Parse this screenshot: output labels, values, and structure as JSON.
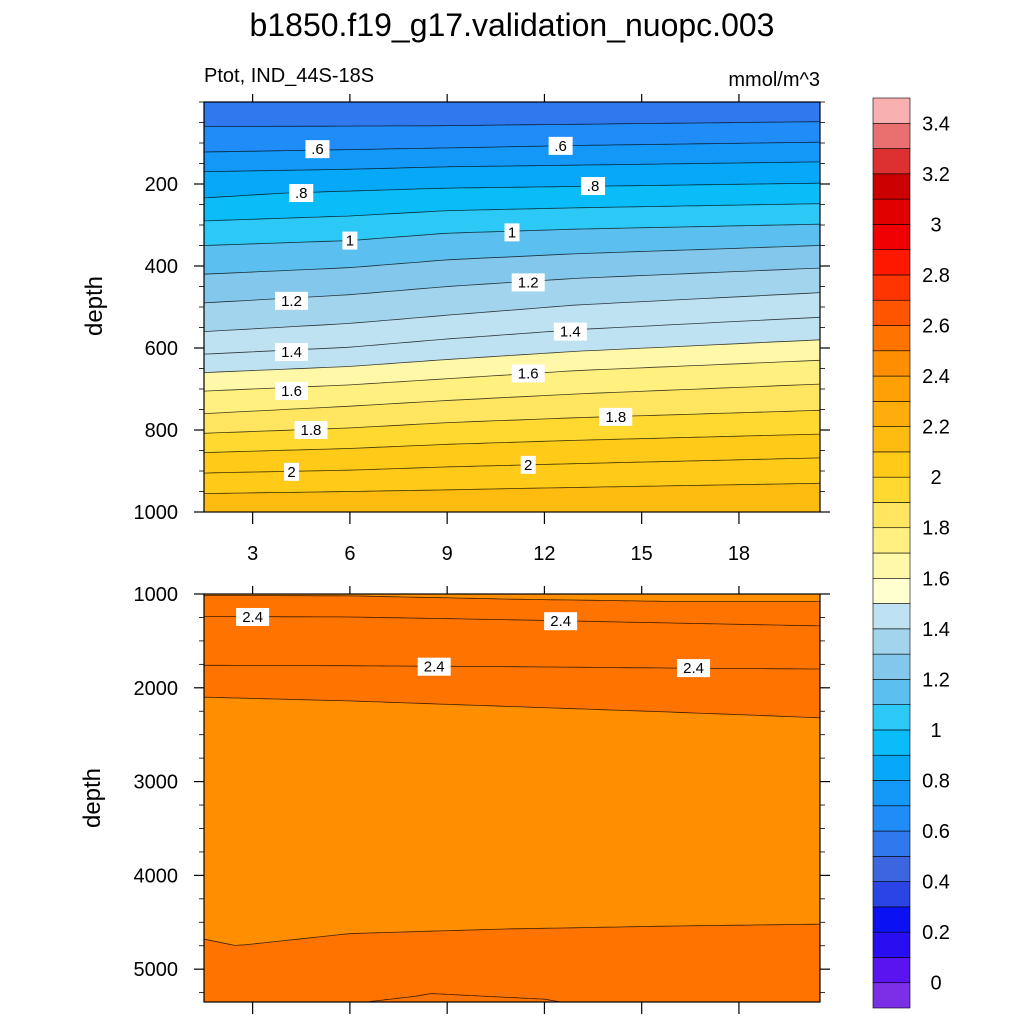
{
  "title": "b1850.f19_g17.validation_nuopc.003",
  "chart_data": [
    {
      "type": "contour",
      "panel": "upper",
      "left_label": "Ptot, IND_44S-18S",
      "right_label": "mmol/m^3",
      "ylabel": "depth",
      "xlabel": "",
      "xlim": [
        1.5,
        20.5
      ],
      "ylim": [
        1000,
        0
      ],
      "x_ticks": [
        3,
        6,
        9,
        12,
        15,
        18
      ],
      "x_tick_labels": [
        "3",
        "6",
        "9",
        "12",
        "15",
        "18"
      ],
      "y_ticks": [
        200,
        400,
        600,
        800,
        1000
      ],
      "y_tick_labels": [
        "200",
        "400",
        "600",
        "800",
        "1000"
      ],
      "contour_levels": [
        0.35,
        0.4,
        0.5,
        0.6,
        0.7,
        0.8,
        0.9,
        1.0,
        1.1,
        1.2,
        1.3,
        1.4,
        1.5,
        1.6,
        1.7,
        1.8,
        1.9,
        2.0,
        2.1,
        2.2
      ],
      "contour_lines": [
        {
          "level": 0.5,
          "x": [
            1.5,
            8.5,
            20.5
          ],
          "depth": [
            60,
            58,
            48
          ]
        },
        {
          "level": 0.6,
          "x": [
            1.5,
            6,
            9,
            13,
            20.5
          ],
          "depth": [
            122,
            116,
            112,
            106,
            98
          ]
        },
        {
          "level": 0.7,
          "x": [
            1.5,
            6,
            9,
            13,
            20.5
          ],
          "depth": [
            170,
            164,
            158,
            154,
            146
          ]
        },
        {
          "level": 0.8,
          "x": [
            1.5,
            4,
            9,
            13,
            20.5
          ],
          "depth": [
            234,
            222,
            210,
            206,
            198
          ]
        },
        {
          "level": 0.9,
          "x": [
            1.5,
            6,
            9,
            13,
            20.5
          ],
          "depth": [
            290,
            278,
            265,
            258,
            248
          ]
        },
        {
          "level": 1.0,
          "x": [
            1.5,
            6,
            9,
            13,
            20.5
          ],
          "depth": [
            350,
            338,
            320,
            310,
            298
          ]
        },
        {
          "level": 1.1,
          "x": [
            1.5,
            6,
            9,
            13,
            20.5
          ],
          "depth": [
            420,
            404,
            385,
            370,
            350
          ]
        },
        {
          "level": 1.2,
          "x": [
            1.5,
            6,
            9,
            13,
            20.5
          ],
          "depth": [
            490,
            470,
            450,
            430,
            405
          ]
        },
        {
          "level": 1.3,
          "x": [
            1.5,
            6,
            9,
            13,
            20.5
          ],
          "depth": [
            560,
            540,
            520,
            495,
            465
          ]
        },
        {
          "level": 1.4,
          "x": [
            1.5,
            6,
            9,
            13,
            20.5
          ],
          "depth": [
            615,
            598,
            578,
            555,
            525
          ]
        },
        {
          "level": 1.5,
          "x": [
            1.5,
            6,
            9,
            13,
            20.5
          ],
          "depth": [
            660,
            645,
            628,
            608,
            580
          ]
        },
        {
          "level": 1.6,
          "x": [
            1.5,
            6,
            9,
            13,
            20.5
          ],
          "depth": [
            705,
            690,
            675,
            655,
            630
          ]
        },
        {
          "level": 1.7,
          "x": [
            1.5,
            6,
            9,
            13,
            20.5
          ],
          "depth": [
            760,
            742,
            728,
            712,
            688
          ]
        },
        {
          "level": 1.8,
          "x": [
            1.5,
            6,
            9,
            13,
            20.5
          ],
          "depth": [
            808,
            795,
            782,
            770,
            752
          ]
        },
        {
          "level": 1.9,
          "x": [
            1.5,
            6,
            9,
            13,
            20.5
          ],
          "depth": [
            855,
            845,
            835,
            825,
            810
          ]
        },
        {
          "level": 2.0,
          "x": [
            1.5,
            6,
            9,
            13,
            20.5
          ],
          "depth": [
            905,
            898,
            890,
            882,
            868
          ]
        },
        {
          "level": 2.1,
          "x": [
            1.5,
            6,
            9,
            13,
            20.5
          ],
          "depth": [
            955,
            950,
            946,
            940,
            930
          ]
        }
      ],
      "line_labels": [
        {
          "text": ".6",
          "x": 5.0,
          "depth": 115
        },
        {
          "text": ".6",
          "x": 12.5,
          "depth": 107
        },
        {
          "text": ".8",
          "x": 4.5,
          "depth": 222
        },
        {
          "text": ".8",
          "x": 13.5,
          "depth": 205
        },
        {
          "text": "1",
          "x": 6.0,
          "depth": 338
        },
        {
          "text": "1",
          "x": 11.0,
          "depth": 318
        },
        {
          "text": "1.2",
          "x": 4.2,
          "depth": 485
        },
        {
          "text": "1.2",
          "x": 11.5,
          "depth": 440
        },
        {
          "text": "1.4",
          "x": 4.2,
          "depth": 610
        },
        {
          "text": "1.4",
          "x": 12.8,
          "depth": 560
        },
        {
          "text": "1.6",
          "x": 4.2,
          "depth": 705
        },
        {
          "text": "1.6",
          "x": 11.5,
          "depth": 662
        },
        {
          "text": "1.8",
          "x": 4.8,
          "depth": 800
        },
        {
          "text": "1.8",
          "x": 14.2,
          "depth": 768
        },
        {
          "text": "2",
          "x": 4.2,
          "depth": 902
        },
        {
          "text": "2",
          "x": 11.5,
          "depth": 885
        }
      ]
    },
    {
      "type": "contour",
      "panel": "lower",
      "ylabel": "depth",
      "xlim": [
        1.5,
        20.5
      ],
      "ylim": [
        5350,
        1000
      ],
      "x_ticks": [
        3,
        6,
        9,
        12,
        15,
        18
      ],
      "y_ticks": [
        1000,
        2000,
        3000,
        4000,
        5000
      ],
      "y_tick_labels": [
        "1000",
        "2000",
        "3000",
        "4000",
        "5000"
      ],
      "contour_levels": [
        2.2,
        2.3,
        2.4,
        2.5
      ],
      "contour_lines": [
        {
          "level": 2.3,
          "x": [
            1.5,
            6,
            11,
            16,
            20.5
          ],
          "depth": [
            1015,
            1020,
            1055,
            1080,
            1080
          ]
        },
        {
          "level": 2.4,
          "x": [
            1.5,
            6,
            11,
            16,
            20.5
          ],
          "depth": [
            1240,
            1245,
            1275,
            1310,
            1340
          ]
        },
        {
          "level": 2.4,
          "x": [
            1.5,
            6,
            11,
            16,
            20.5
          ],
          "depth": [
            1760,
            1765,
            1775,
            1790,
            1800
          ]
        },
        {
          "level": 2.3,
          "x": [
            1.5,
            6,
            11,
            16,
            20.5
          ],
          "depth": [
            2100,
            2140,
            2200,
            2260,
            2320
          ]
        },
        {
          "level": 2.3,
          "x": [
            1.5,
            2.5,
            6,
            11,
            16,
            20.5
          ],
          "depth": [
            4680,
            4750,
            4620,
            4570,
            4540,
            4520
          ]
        },
        {
          "level": 2.3,
          "x": [
            6.5,
            8,
            8.5,
            12,
            12.5
          ],
          "depth": [
            5350,
            5290,
            5260,
            5320,
            5350
          ]
        }
      ],
      "line_labels": [
        {
          "text": "2.4",
          "x": 3.0,
          "depth": 1245
        },
        {
          "text": "2.4",
          "x": 12.5,
          "depth": 1290
        },
        {
          "text": "2.4",
          "x": 8.6,
          "depth": 1775
        },
        {
          "text": "2.4",
          "x": 16.6,
          "depth": 1790
        }
      ]
    }
  ],
  "colorbar": {
    "colors": [
      "#7b2fe6",
      "#5a14f0",
      "#2a0ef2",
      "#0a12f4",
      "#2a44e6",
      "#3b66e0",
      "#2f78ee",
      "#1f8cf7",
      "#1398f8",
      "#08a8f8",
      "#0abcf8",
      "#2cc8f6",
      "#5bbff0",
      "#83c8ec",
      "#a2d4ee",
      "#bfe2f2",
      "#ffffd0",
      "#fff8a8",
      "#fff080",
      "#ffe560",
      "#ffd830",
      "#ffca18",
      "#ffbc10",
      "#ffad0a",
      "#ffa004",
      "#ff8f00",
      "#ff7400",
      "#ff5400",
      "#ff3500",
      "#ff1800",
      "#f00000",
      "#e00000",
      "#cc0000",
      "#dd3030",
      "#ea7070",
      "#f8b0b0"
    ],
    "labels": [
      "0",
      "0.2",
      "0.4",
      "0.6",
      "0.8",
      "1",
      "1.2",
      "1.4",
      "1.6",
      "1.8",
      "2",
      "2.2",
      "2.4",
      "2.6",
      "2.8",
      "3",
      "3.2",
      "3.4"
    ],
    "label_values": [
      0,
      0.2,
      0.4,
      0.6,
      0.8,
      1.0,
      1.2,
      1.4,
      1.6,
      1.8,
      2.0,
      2.2,
      2.4,
      2.6,
      2.8,
      3.0,
      3.2,
      3.4
    ]
  }
}
